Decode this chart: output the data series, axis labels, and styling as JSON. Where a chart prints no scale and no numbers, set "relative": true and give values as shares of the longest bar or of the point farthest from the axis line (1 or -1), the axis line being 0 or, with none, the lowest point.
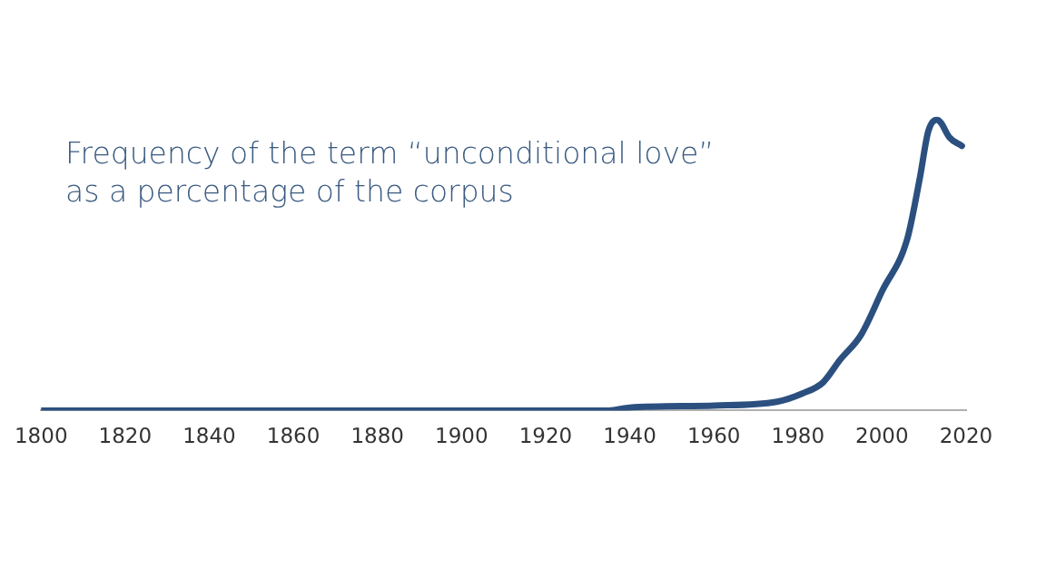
{
  "chart_data": {
    "type": "line",
    "title": "Frequency of the term “unconditional love”\nas a percentage of the corpus",
    "relative": true,
    "x": [
      1800,
      1850,
      1900,
      1935,
      1940,
      1960,
      1975,
      1981,
      1986,
      1990,
      1995,
      2000,
      2006,
      2009,
      2011,
      2013,
      2014,
      2016,
      2019
    ],
    "series": [
      {
        "color": "#2b5080",
        "values": [
          0,
          0,
          0,
          0,
          0.01,
          0.017,
          0.03,
          0.058,
          0.097,
          0.174,
          0.26,
          0.41,
          0.59,
          0.8,
          0.96,
          1,
          0.99,
          0.94,
          0.91
        ]
      }
    ],
    "xlim": [
      1800,
      2020
    ],
    "xticks": [
      1800,
      1820,
      1840,
      1860,
      1880,
      1900,
      1920,
      1940,
      1960,
      1980,
      2000,
      2020
    ],
    "grid": false,
    "legend": false,
    "marker": "none",
    "line_style": "solid"
  }
}
